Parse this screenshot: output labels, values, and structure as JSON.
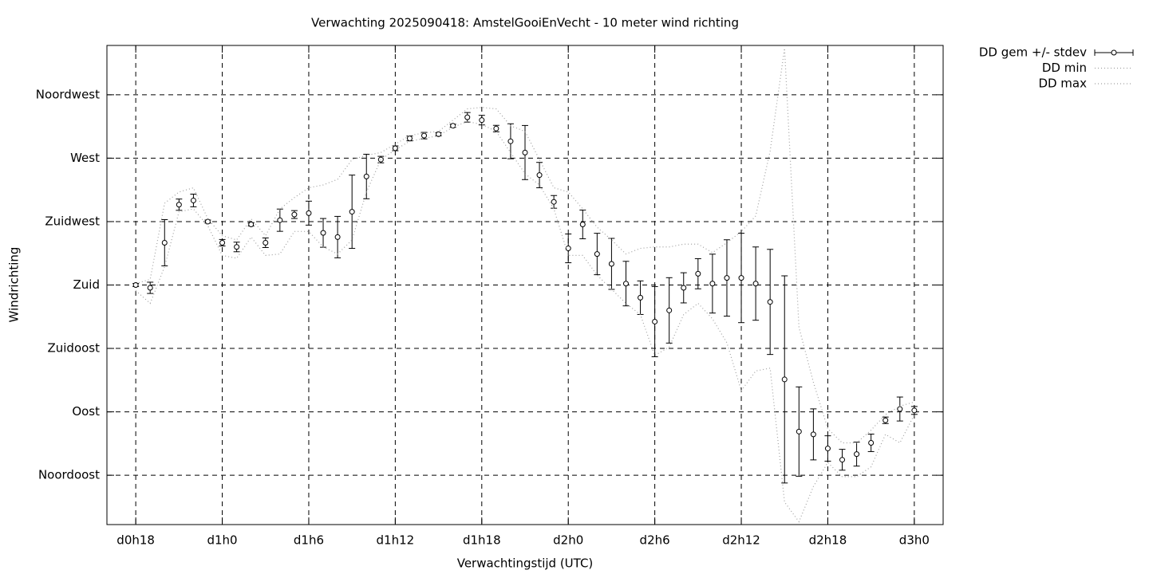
{
  "chart_data": {
    "type": "errorbar",
    "title": "Verwachting 2025090418: AmstelGooiEnVecht - 10 meter wind richting",
    "x_label": "Verwachtingstijd (UTC)",
    "y_label": "Windrichting",
    "x": [
      18,
      19,
      20,
      21,
      22,
      23,
      24,
      25,
      26,
      27,
      28,
      29,
      30,
      31,
      32,
      33,
      34,
      35,
      36,
      37,
      38,
      39,
      40,
      41,
      42,
      43,
      44,
      45,
      46,
      47,
      48,
      49,
      50,
      51,
      52,
      53,
      54,
      55,
      56,
      57,
      58,
      59,
      60,
      61,
      62,
      63,
      64,
      65,
      66,
      67,
      68,
      69,
      70,
      71,
      72
    ],
    "series": [
      {
        "name": "DD gem +/- stdev",
        "color": "#000000",
        "values": [
          180,
          178,
          210,
          237,
          240,
          225,
          210,
          207,
          223,
          210,
          226,
          230,
          231,
          217,
          214,
          232,
          257,
          269,
          277,
          284,
          286,
          287,
          293,
          299,
          297,
          291,
          282,
          274,
          258,
          239,
          206,
          223,
          202,
          195,
          181,
          171,
          154,
          162,
          178,
          188,
          181,
          185,
          185,
          181,
          168,
          113,
          76,
          74,
          64,
          56,
          60,
          68,
          84,
          92,
          91
        ],
        "errors": [
          1.1,
          4,
          16.4,
          4,
          4.5,
          1.1,
          2.3,
          3.4,
          1.1,
          3.4,
          7.9,
          2.8,
          8.5,
          10.2,
          14.7,
          26,
          15.8,
          2.3,
          1.7,
          1.7,
          2.3,
          1.1,
          1.1,
          3.4,
          3.4,
          2.3,
          12.4,
          19.2,
          9,
          4.5,
          10.2,
          10.2,
          14.7,
          18.1,
          15.8,
          11.9,
          24.9,
          23.2,
          10.7,
          10.7,
          20.9,
          27.1,
          31.7,
          26,
          37.3,
          73.5,
          31.7,
          18.1,
          9,
          7.4,
          8.5,
          6.2,
          2.3,
          8.5,
          2.8
        ]
      },
      {
        "name": "DD min",
        "color": "#a0a0a0",
        "values": [
          176,
          167,
          193,
          232,
          234,
          222,
          201,
          199,
          214,
          201,
          202,
          218,
          218,
          207,
          202,
          212,
          246,
          269,
          276,
          282,
          284,
          286,
          292,
          296,
          294,
          289,
          274,
          259,
          251,
          234,
          201,
          201,
          187,
          177,
          167,
          159,
          130,
          136,
          159,
          167,
          156,
          139,
          105,
          119,
          121,
          26,
          12,
          37,
          54,
          44,
          44,
          51,
          74,
          68,
          88
        ]
      },
      {
        "name": "DD max",
        "color": "#a0a0a0",
        "values": [
          181,
          184,
          238,
          246,
          249,
          227,
          215,
          212,
          227,
          215,
          234,
          242,
          249,
          251,
          255,
          269,
          272,
          274,
          280,
          286,
          288,
          289,
          297,
          305,
          306,
          305,
          293,
          289,
          269,
          249,
          246,
          234,
          221,
          212,
          202,
          206,
          207,
          207,
          209,
          209,
          203,
          210,
          218,
          229,
          275,
          348,
          150,
          111,
          78,
          68,
          68,
          77,
          88,
          94,
          97
        ]
      }
    ],
    "xlim": [
      16,
      74
    ],
    "ylim": [
      10,
      350
    ],
    "xticks": [
      {
        "value": 18,
        "label": "d0h18"
      },
      {
        "value": 24,
        "label": "d1h0"
      },
      {
        "value": 30,
        "label": "d1h6"
      },
      {
        "value": 36,
        "label": "d1h12"
      },
      {
        "value": 42,
        "label": "d1h18"
      },
      {
        "value": 48,
        "label": "d2h0"
      },
      {
        "value": 54,
        "label": "d2h6"
      },
      {
        "value": 60,
        "label": "d2h12"
      },
      {
        "value": 66,
        "label": "d2h18"
      },
      {
        "value": 72,
        "label": "d3h0"
      }
    ],
    "yticks": [
      {
        "value": 45,
        "label": "Noordoost"
      },
      {
        "value": 90,
        "label": "Oost"
      },
      {
        "value": 135,
        "label": "Zuidoost"
      },
      {
        "value": 180,
        "label": "Zuid"
      },
      {
        "value": 225,
        "label": "Zuidwest"
      },
      {
        "value": 270,
        "label": "West"
      },
      {
        "value": 315,
        "label": "Noordwest"
      }
    ],
    "grid": true,
    "legend": "outside-top-right"
  }
}
